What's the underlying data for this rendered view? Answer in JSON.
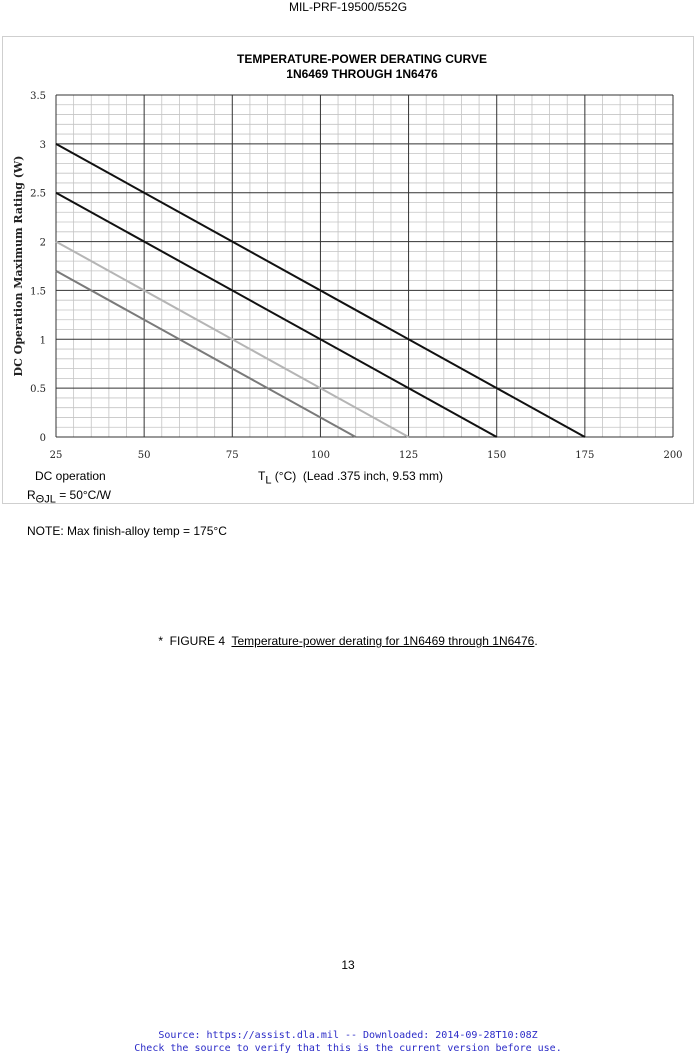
{
  "header": {
    "doc_id": "MIL-PRF-19500/552G"
  },
  "chart_data": {
    "type": "line",
    "title": "TEMPERATURE-POWER DERATING CURVE",
    "subtitle": "1N6469 THROUGH 1N6476",
    "ylabel": "DC Operation Maximum Rating (W)",
    "xlabel_main": "T",
    "xlabel_sub": "L",
    "xlabel_rest": " (°C)  (Lead .375 inch, 9.53 mm)",
    "xlim": [
      25,
      200
    ],
    "ylim": [
      0,
      3.5
    ],
    "x_ticks": [
      25,
      50,
      75,
      100,
      125,
      150,
      175,
      200
    ],
    "y_ticks": [
      0,
      0.5,
      1,
      1.5,
      2,
      2.5,
      3,
      3.5
    ],
    "x_tick_labels": [
      "25",
      "50",
      "75",
      "100",
      "125",
      "150",
      "175",
      "200"
    ],
    "y_tick_labels": [
      "0",
      "0.5",
      "1",
      "1.5",
      "2",
      "2.5",
      "3",
      "3.5"
    ],
    "grid": true,
    "series": [
      {
        "color": "#111111",
        "x": [
          25,
          175
        ],
        "y": [
          3,
          0
        ]
      },
      {
        "color": "#111111",
        "x": [
          25,
          150
        ],
        "y": [
          2.5,
          0
        ]
      },
      {
        "color": "#b5b5b5",
        "x": [
          25,
          125
        ],
        "y": [
          2,
          0
        ]
      },
      {
        "color": "#7a7a7a",
        "x": [
          25,
          110
        ],
        "y": [
          1.7,
          0
        ]
      }
    ]
  },
  "notes": {
    "dc_operation": "DC operation",
    "r_main": "R",
    "r_sub": "ΘJL",
    "r_rest": " = 50°C/W",
    "max_temp": "NOTE: Max finish-alloy temp = 175°C"
  },
  "caption": {
    "prefix": "*  FIGURE 4  ",
    "text": "Temperature-power derating for 1N6469 through 1N6476",
    "suffix": "."
  },
  "page_number": "13",
  "footer": {
    "source": "Source: https://assist.dla.mil -- Downloaded: 2014-09-28T10:08Z",
    "check": "Check the source to verify that this is the current version before use."
  }
}
